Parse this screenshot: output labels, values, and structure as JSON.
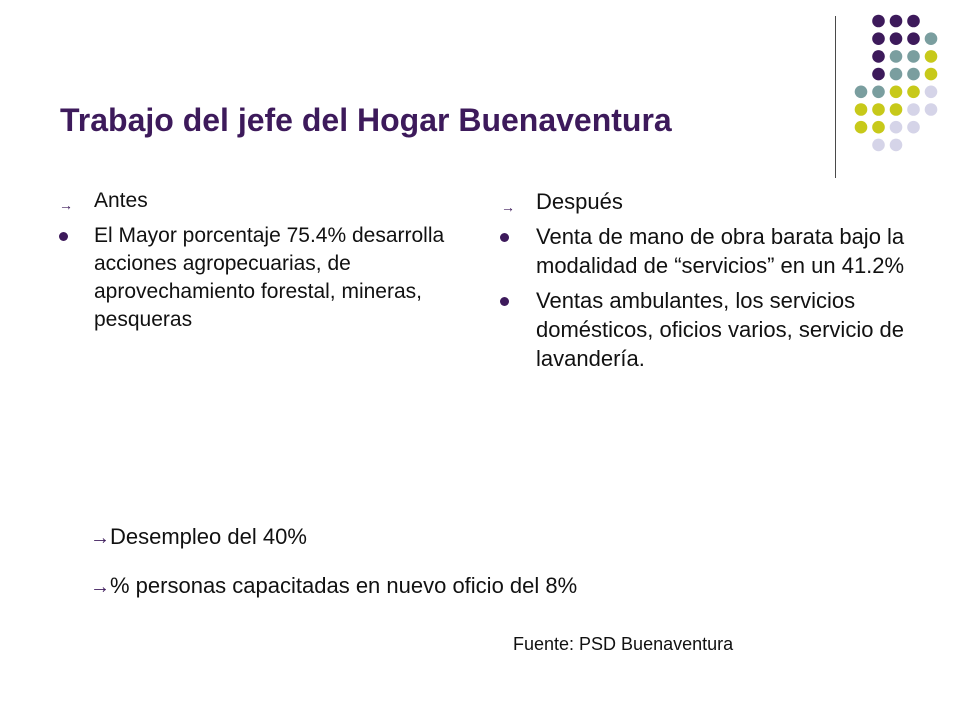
{
  "title": "Trabajo del jefe del Hogar Buenaventura",
  "left_column": {
    "heading": "Antes",
    "bullets": [
      "El Mayor porcentaje 75.4% desarrolla acciones agropecuarias, de aprovechamiento forestal, mineras, pesqueras"
    ]
  },
  "right_column": {
    "heading": "Después",
    "bullets": [
      "Venta de mano de obra barata bajo la modalidad de “servicios” en un 41.2%",
      "Ventas ambulantes, los servicios domésticos, oficios varios, servicio de lavandería."
    ]
  },
  "footnotes": [
    "Desempleo del 40%",
    "% personas capacitadas en nuevo oficio del 8%"
  ],
  "source": "Fuente: PSD Buenaventura",
  "icons": {
    "arrow": "right-arrow-icon",
    "bullet": "round-bullet-icon"
  },
  "colors": {
    "title": "#3d1a5b",
    "dot_purple": "#3d1a5b",
    "dot_teal": "#7a9e9f",
    "dot_lime": "#c7c91a",
    "dot_lavender": "#d5d4e8"
  }
}
